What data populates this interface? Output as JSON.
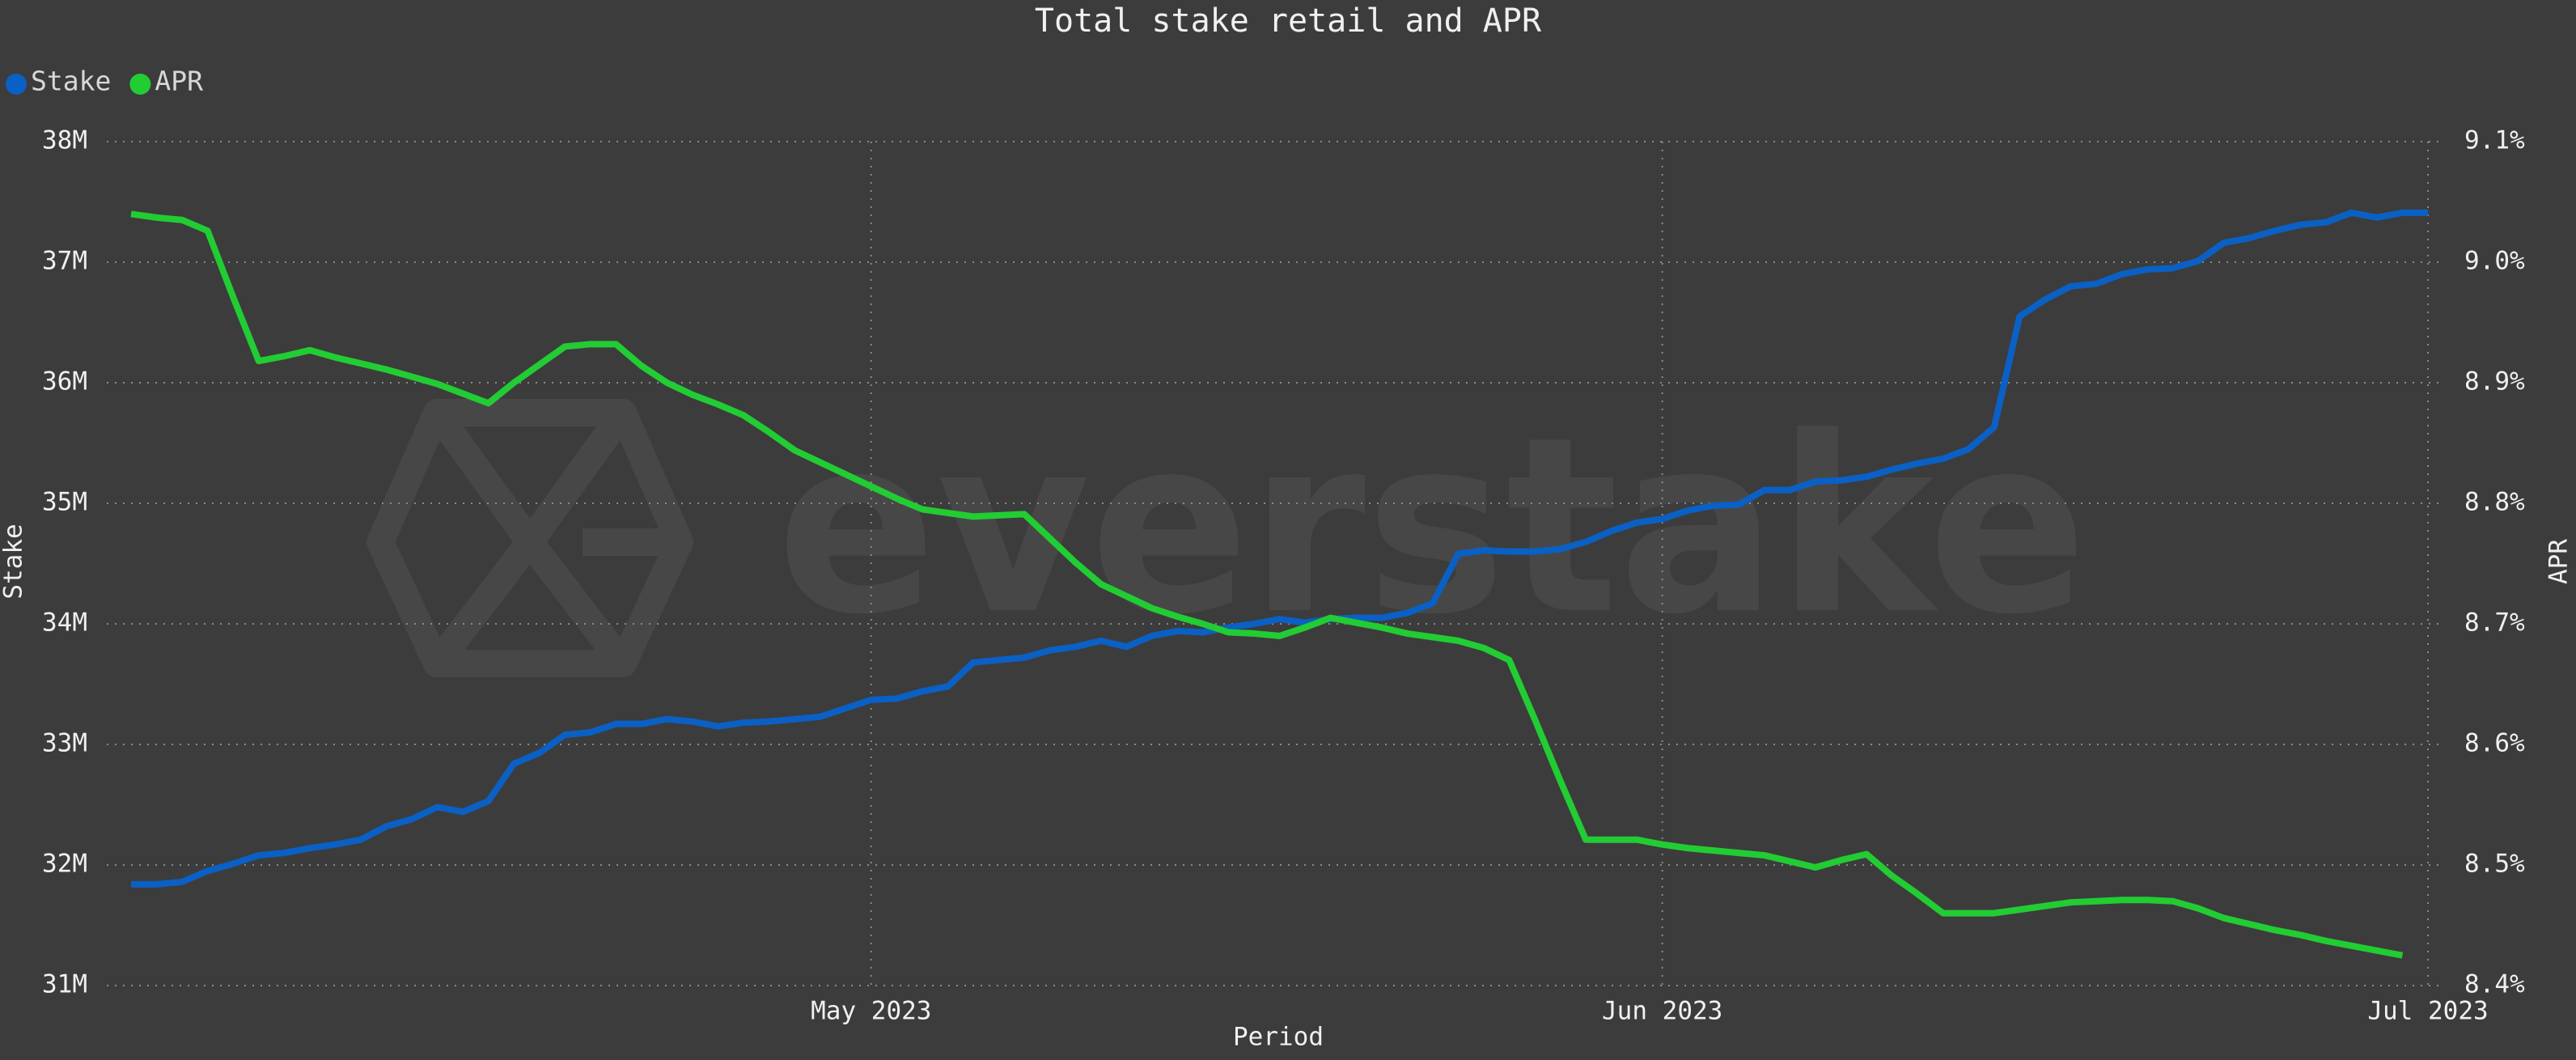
{
  "chart_data": {
    "type": "line",
    "title": "Total stake retail and APR",
    "watermark": "everstake",
    "x_label": "Period",
    "y_label": "Stake",
    "y2_label": "APR",
    "categories": [
      null,
      null,
      null,
      null,
      null,
      null,
      null,
      null,
      null,
      null,
      null,
      null,
      null,
      null,
      null,
      null,
      null,
      null,
      null,
      null,
      null,
      null,
      null,
      null,
      null,
      null,
      null,
      null,
      null,
      "May 2023",
      null,
      null,
      null,
      null,
      null,
      null,
      null,
      null,
      null,
      null,
      null,
      null,
      null,
      null,
      null,
      null,
      null,
      null,
      null,
      null,
      null,
      null,
      null,
      null,
      null,
      null,
      null,
      null,
      null,
      null,
      "Jun 2023",
      null,
      null,
      null,
      null,
      null,
      null,
      null,
      null,
      null,
      null,
      null,
      null,
      null,
      null,
      null,
      null,
      null,
      null,
      null,
      null,
      null,
      null,
      null,
      null,
      null,
      null,
      null,
      null,
      null,
      "Jul 2023"
    ],
    "series": [
      {
        "name": "Stake",
        "color": "#0a60c4",
        "values": [
          31840000,
          31840000,
          31860000,
          31950000,
          32010000,
          32080000,
          32100000,
          32140000,
          32170000,
          32210000,
          32320000,
          32380000,
          32480000,
          32440000,
          32530000,
          32840000,
          32930000,
          33080000,
          33100000,
          33170000,
          33170000,
          33210000,
          33190000,
          33150000,
          33180000,
          33190000,
          33210000,
          33230000,
          33300000,
          33370000,
          33380000,
          33440000,
          33480000,
          33680000,
          33700000,
          33720000,
          33780000,
          33810000,
          33860000,
          33810000,
          33900000,
          33940000,
          33930000,
          33970000,
          34000000,
          34040000,
          34010000,
          34040000,
          34050000,
          34050000,
          34090000,
          34170000,
          34580000,
          34610000,
          34600000,
          34600000,
          34620000,
          34680000,
          34770000,
          34840000,
          34870000,
          34940000,
          34980000,
          34990000,
          35110000,
          35110000,
          35180000,
          35190000,
          35220000,
          35280000,
          35330000,
          35370000,
          35450000,
          35630000,
          36550000,
          36690000,
          36800000,
          36820000,
          36900000,
          36940000,
          36950000,
          37010000,
          37160000,
          37200000,
          37260000,
          37310000,
          37330000,
          37410000,
          37370000,
          37410000,
          37410000
        ]
      },
      {
        "name": "APR",
        "color": "#22cc33",
        "axis": "y2",
        "values": [
          9.04,
          9.037,
          9.035,
          9.026,
          8.971,
          8.918,
          8.922,
          8.927,
          8.921,
          8.916,
          8.911,
          8.905,
          8.899,
          8.891,
          8.883,
          8.9,
          8.915,
          8.93,
          8.932,
          8.932,
          8.914,
          8.9,
          8.89,
          8.882,
          8.873,
          8.859,
          8.844,
          8.834,
          8.824,
          8.814,
          8.804,
          8.795,
          8.792,
          8.789,
          8.79,
          8.791,
          8.771,
          8.751,
          8.733,
          8.723,
          8.713,
          8.706,
          8.7,
          8.693,
          8.692,
          8.69,
          8.697,
          8.705,
          8.701,
          8.697,
          8.692,
          8.689,
          8.686,
          8.68,
          8.67,
          8.621,
          8.57,
          8.521,
          8.521,
          8.521,
          8.517,
          8.514,
          8.512,
          8.51,
          8.508,
          8.503,
          8.498,
          8.504,
          8.509,
          8.491,
          8.476,
          8.46,
          8.46,
          8.46,
          8.463,
          8.466,
          8.469,
          8.47,
          8.471,
          8.471,
          8.47,
          8.464,
          8.456,
          8.451,
          8.446,
          8.442,
          8.437,
          8.433,
          8.429,
          8.425,
          null
        ]
      }
    ],
    "ylim": [
      31000000,
      38000000
    ],
    "yticks": [
      {
        "value": 31000000,
        "label": "31M"
      },
      {
        "value": 32000000,
        "label": "32M"
      },
      {
        "value": 33000000,
        "label": "33M"
      },
      {
        "value": 34000000,
        "label": "34M"
      },
      {
        "value": 35000000,
        "label": "35M"
      },
      {
        "value": 36000000,
        "label": "36M"
      },
      {
        "value": 37000000,
        "label": "37M"
      },
      {
        "value": 38000000,
        "label": "38M"
      }
    ],
    "y2lim": [
      8.4,
      9.1
    ],
    "y2ticks": [
      {
        "value": 8.4,
        "label": "8.4%"
      },
      {
        "value": 8.5,
        "label": "8.5%"
      },
      {
        "value": 8.6,
        "label": "8.6%"
      },
      {
        "value": 8.7,
        "label": "8.7%"
      },
      {
        "value": 8.8,
        "label": "8.8%"
      },
      {
        "value": 8.9,
        "label": "8.9%"
      },
      {
        "value": 9.0,
        "label": "9.0%"
      },
      {
        "value": 9.1,
        "label": "9.1%"
      }
    ],
    "grid": true,
    "legend": "top-left"
  }
}
